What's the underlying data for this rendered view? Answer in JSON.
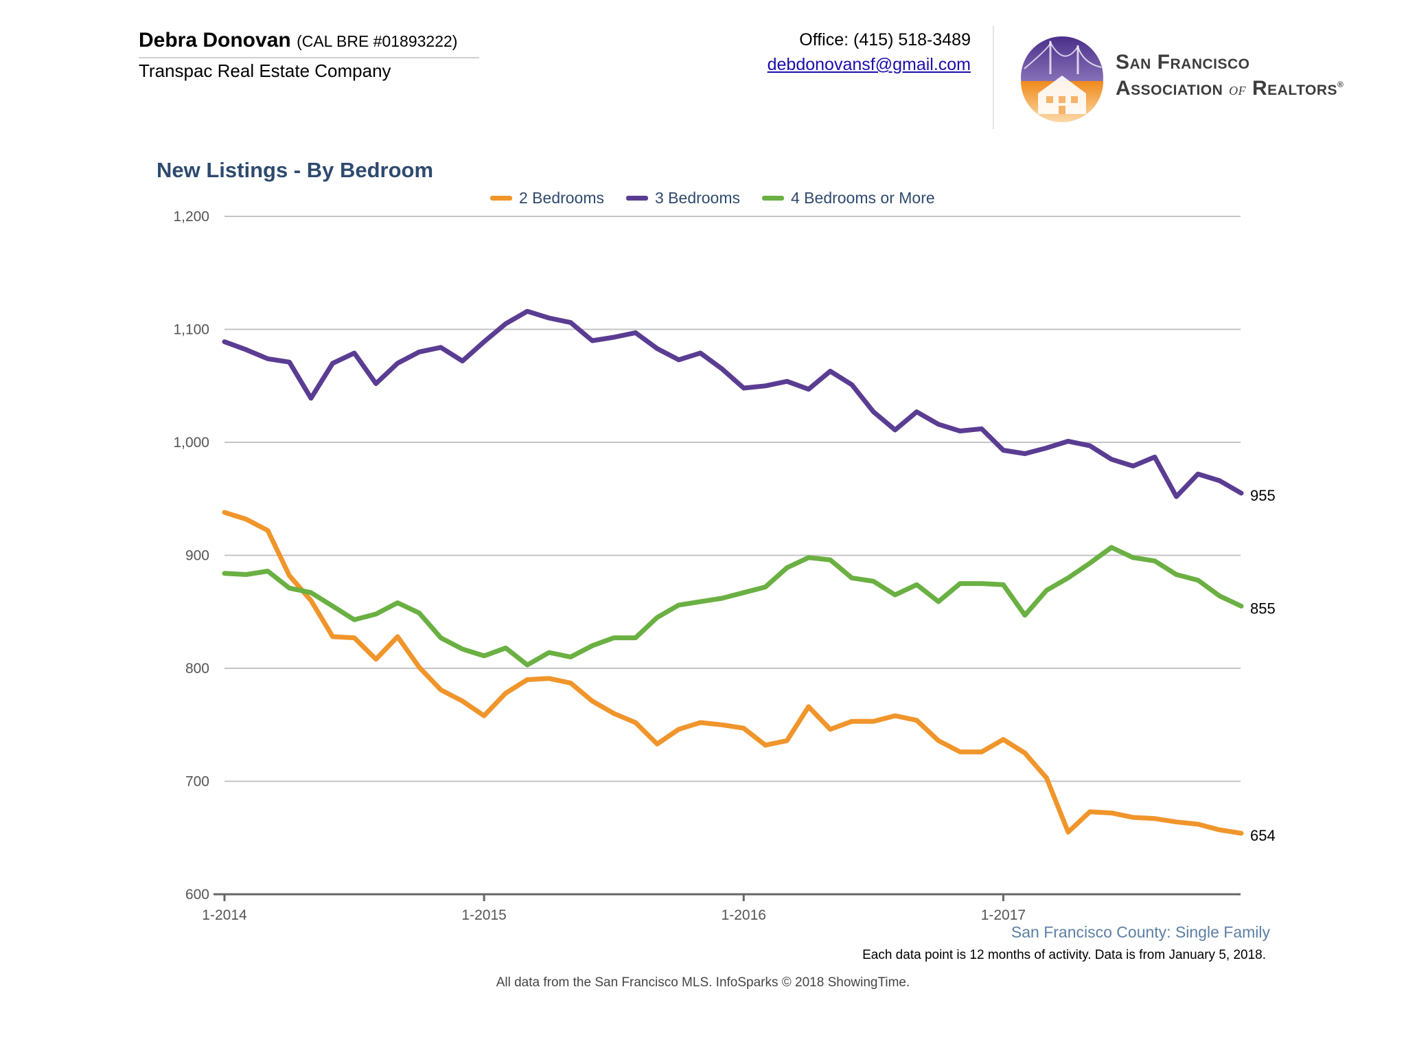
{
  "header": {
    "agent_name": "Debra Donovan",
    "agent_license": "(CAL BRE #01893222)",
    "company": "Transpac Real Estate Company",
    "office": "Office: (415) 518-3489",
    "email": "debdonovansf@gmail.com",
    "association_line1": "San Francisco",
    "association_line2a": "Association",
    "association_line2b": "of",
    "association_line2c": "Realtors",
    "association_mark": "®"
  },
  "colors": {
    "two_bed": "#f0952b",
    "three_bed": "#5a3d92",
    "four_bed": "#6ab042",
    "title": "#2e4a6e",
    "grid": "#c4c4c4"
  },
  "chart_data": {
    "type": "line",
    "title": "New Listings - By Bedroom",
    "xlabel": "",
    "ylabel": "",
    "ylim": [
      600,
      1200
    ],
    "yticks": [
      600,
      700,
      800,
      900,
      1000,
      1100,
      1200
    ],
    "ytick_labels": [
      "600",
      "700",
      "800",
      "900",
      "1,000",
      "1,100",
      "1,200"
    ],
    "xtick_labels": [
      "1-2014",
      "1-2015",
      "1-2016",
      "1-2017"
    ],
    "xtick_index": [
      0,
      12,
      24,
      36
    ],
    "grid": true,
    "legend_position": "top-center",
    "x": [
      "1-2014",
      "2-2014",
      "3-2014",
      "4-2014",
      "5-2014",
      "6-2014",
      "7-2014",
      "8-2014",
      "9-2014",
      "10-2014",
      "11-2014",
      "12-2014",
      "1-2015",
      "2-2015",
      "3-2015",
      "4-2015",
      "5-2015",
      "6-2015",
      "7-2015",
      "8-2015",
      "9-2015",
      "10-2015",
      "11-2015",
      "12-2015",
      "1-2016",
      "2-2016",
      "3-2016",
      "4-2016",
      "5-2016",
      "6-2016",
      "7-2016",
      "8-2016",
      "9-2016",
      "10-2016",
      "11-2016",
      "12-2016",
      "1-2017",
      "2-2017",
      "3-2017",
      "4-2017",
      "5-2017",
      "6-2017",
      "7-2017",
      "8-2017",
      "9-2017",
      "10-2017",
      "11-2017",
      "12-2017"
    ],
    "series": [
      {
        "name": "2 Bedrooms",
        "color": "#f0952b",
        "end_label": "654",
        "values": [
          938,
          932,
          922,
          882,
          860,
          828,
          827,
          808,
          828,
          801,
          781,
          771,
          758,
          778,
          790,
          791,
          787,
          771,
          760,
          752,
          733,
          746,
          752,
          750,
          747,
          732,
          736,
          766,
          746,
          753,
          753,
          758,
          754,
          736,
          726,
          726,
          737,
          725,
          703,
          655,
          673,
          672,
          668,
          667,
          664,
          662,
          657,
          654
        ]
      },
      {
        "name": "3 Bedrooms",
        "color": "#5a3d92",
        "end_label": "955",
        "values": [
          1089,
          1082,
          1074,
          1071,
          1039,
          1070,
          1079,
          1052,
          1070,
          1080,
          1084,
          1072,
          1089,
          1105,
          1116,
          1110,
          1106,
          1090,
          1093,
          1097,
          1083,
          1073,
          1079,
          1065,
          1048,
          1050,
          1054,
          1047,
          1063,
          1051,
          1027,
          1011,
          1027,
          1016,
          1010,
          1012,
          993,
          990,
          995,
          1001,
          997,
          985,
          979,
          987,
          952,
          972,
          966,
          955
        ]
      },
      {
        "name": "4 Bedrooms or More",
        "color": "#6ab042",
        "end_label": "855",
        "values": [
          884,
          883,
          886,
          871,
          867,
          855,
          843,
          848,
          858,
          849,
          827,
          817,
          811,
          818,
          803,
          814,
          810,
          820,
          827,
          827,
          845,
          856,
          859,
          862,
          867,
          872,
          889,
          898,
          896,
          880,
          877,
          865,
          874,
          859,
          875,
          875,
          874,
          847,
          869,
          880,
          893,
          907,
          898,
          895,
          883,
          878,
          864,
          855
        ]
      }
    ]
  },
  "footer": {
    "region": "San Francisco County: Single Family",
    "note": "Each data point is 12 months of activity. Data is from January 5, 2018.",
    "source": "All data from the San Francisco MLS. InfoSparks © 2018 ShowingTime."
  }
}
